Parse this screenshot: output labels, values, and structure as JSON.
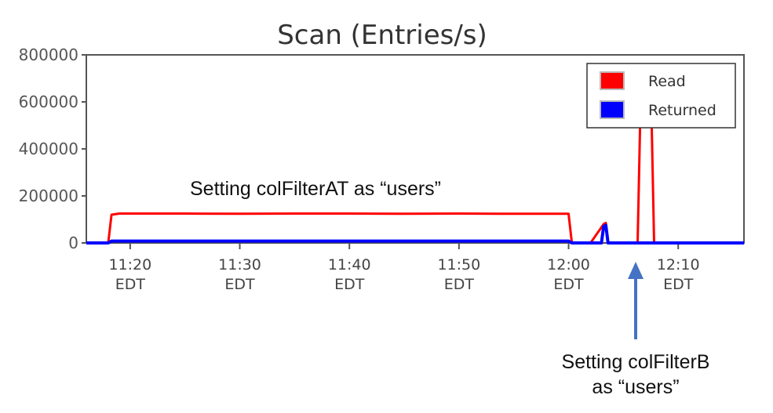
{
  "chart_data": {
    "type": "line",
    "title": "Scan (Entries/s)",
    "xlabel": "",
    "ylabel": "",
    "ylim": [
      0,
      800000
    ],
    "yticks": [
      0,
      200000,
      400000,
      600000,
      800000
    ],
    "ytick_labels": [
      "0",
      "200000",
      "400000",
      "600000",
      "800000"
    ],
    "xlim_minutes": [
      "11:16",
      "12:16"
    ],
    "xticks": [
      {
        "time": "11:20",
        "tz": "EDT"
      },
      {
        "time": "11:30",
        "tz": "EDT"
      },
      {
        "time": "11:40",
        "tz": "EDT"
      },
      {
        "time": "11:50",
        "tz": "EDT"
      },
      {
        "time": "12:00",
        "tz": "EDT"
      },
      {
        "time": "12:10",
        "tz": "EDT"
      }
    ],
    "legend_position": "top-right",
    "grid": false,
    "series": [
      {
        "name": "Read",
        "color": "#ff0000",
        "x": [
          "11:16",
          "11:18",
          "11:18.3",
          "11:19",
          "11:20",
          "11:25",
          "11:30",
          "11:35",
          "11:40",
          "11:45",
          "11:50",
          "11:55",
          "11:59",
          "12:00",
          "12:00.3",
          "12:02",
          "12:03.2",
          "12:03.4",
          "12:03.6",
          "12:04",
          "12:05",
          "12:06.3",
          "12:06.6",
          "12:07",
          "12:07.5",
          "12:07.8",
          "12:08",
          "12:16"
        ],
        "values": [
          0,
          0,
          120000,
          125000,
          125000,
          125000,
          124000,
          125000,
          125000,
          124000,
          125000,
          124000,
          124000,
          124000,
          0,
          0,
          80000,
          85000,
          0,
          0,
          0,
          0,
          670000,
          700000,
          690000,
          0,
          0,
          0
        ]
      },
      {
        "name": "Returned",
        "color": "#0000ff",
        "x": [
          "11:16",
          "11:18",
          "11:18.3",
          "11:30",
          "11:50",
          "12:00",
          "12:00.3",
          "12:03",
          "12:03.2",
          "12:03.4",
          "12:03.6",
          "12:16"
        ],
        "values": [
          0,
          0,
          8000,
          8000,
          8000,
          8000,
          0,
          0,
          70000,
          75000,
          0,
          0
        ]
      }
    ],
    "annotations": [
      {
        "text": "Setting colFilterAT as “users”"
      },
      {
        "lines": [
          "Setting colFilterB",
          "as “users”"
        ],
        "arrow_time": "12:06.3"
      }
    ]
  },
  "colors": {
    "read": "#ff0000",
    "returned": "#0000ff",
    "arrow": "#4472c4",
    "frame": "#555555"
  }
}
